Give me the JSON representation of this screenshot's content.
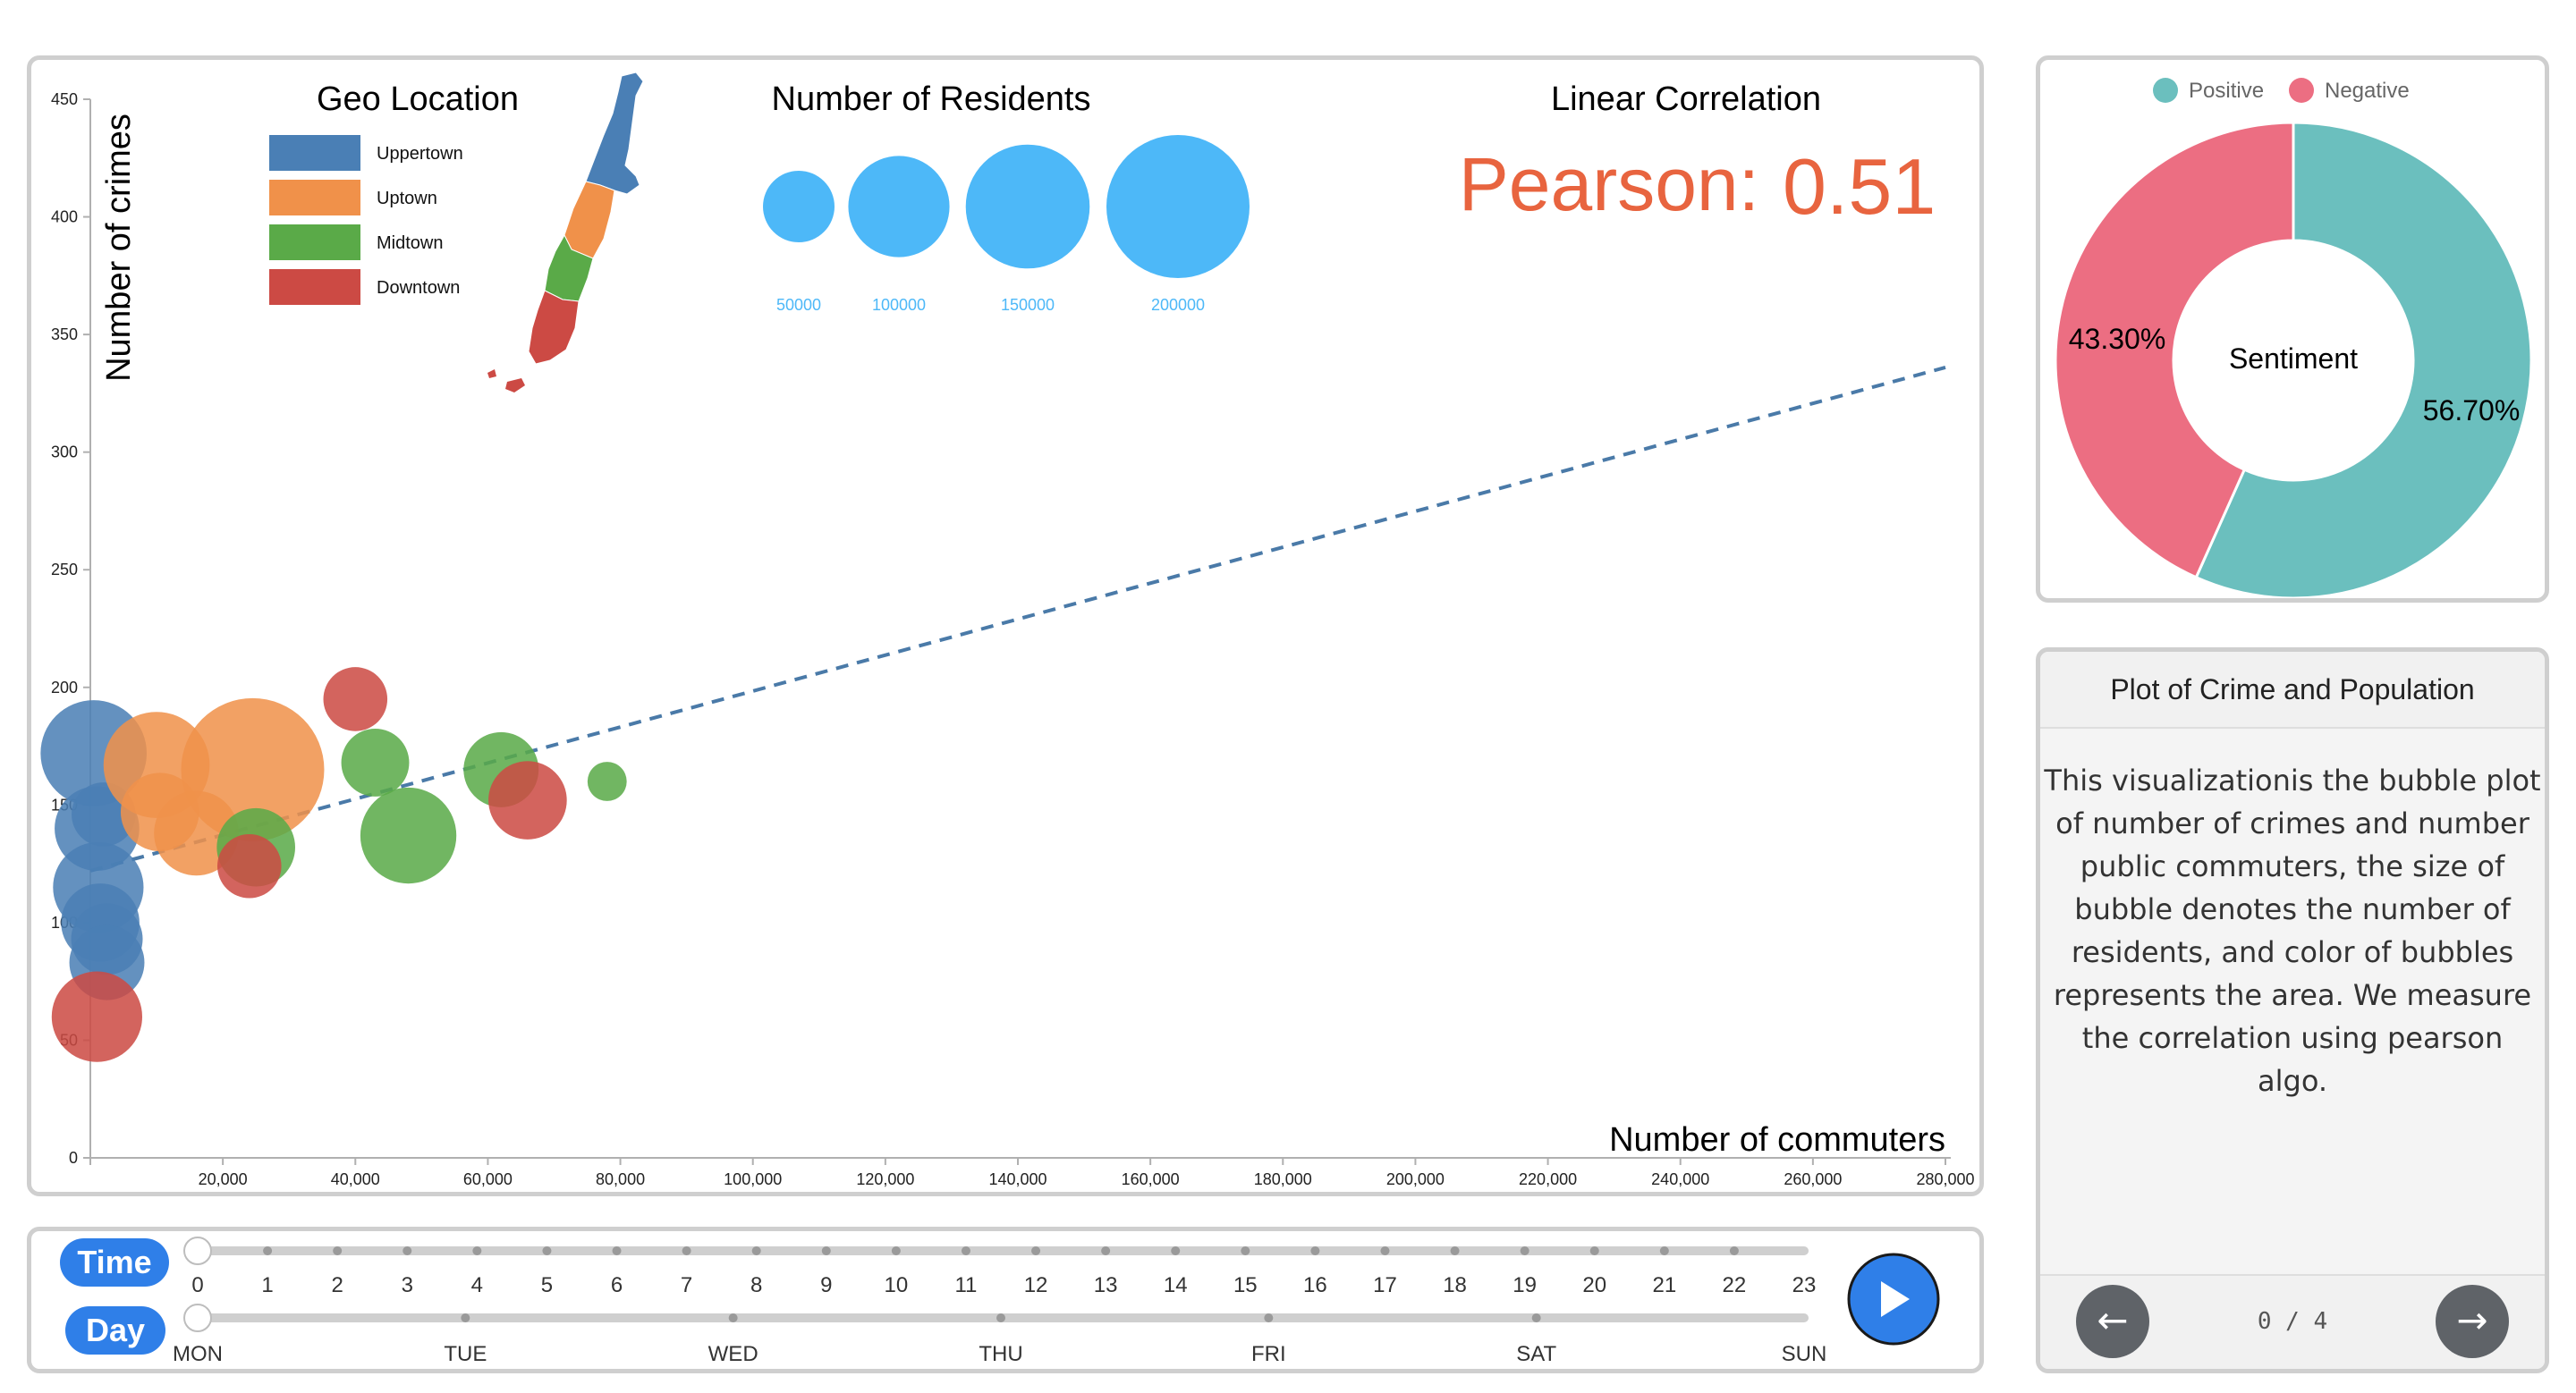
{
  "chart_data": {
    "type": "scatter",
    "xlabel": "Number of commuters",
    "ylabel": "Number of crimes",
    "xlim": [
      0,
      280000
    ],
    "ylim": [
      0,
      450
    ],
    "x_ticks": [
      20000,
      40000,
      60000,
      80000,
      100000,
      120000,
      140000,
      160000,
      180000,
      200000,
      220000,
      240000,
      260000,
      280000
    ],
    "x_tick_labels": [
      "20,000",
      "40,000",
      "60,000",
      "80,000",
      "100,000",
      "120,000",
      "140,000",
      "160,000",
      "180,000",
      "200,000",
      "220,000",
      "240,000",
      "260,000",
      "280,000"
    ],
    "y_ticks": [
      0,
      50,
      100,
      150,
      200,
      250,
      300,
      350,
      400,
      450
    ],
    "y_tick_labels": [
      "0",
      "50",
      "100",
      "150",
      "200",
      "250",
      "300",
      "350",
      "400",
      "450"
    ],
    "trend_line": {
      "x": [
        0,
        280000
      ],
      "y": [
        122,
        336
      ],
      "style": "dashed",
      "color": "#4a7aa8"
    },
    "series": [
      {
        "name": "Uppertown",
        "color": "#4a7fb5",
        "points": [
          {
            "x": 500,
            "y": 172,
            "residents": 110000
          },
          {
            "x": 1000,
            "y": 140,
            "residents": 70000
          },
          {
            "x": 1200,
            "y": 115,
            "residents": 80000
          },
          {
            "x": 1500,
            "y": 100,
            "residents": 60000
          },
          {
            "x": 2500,
            "y": 93,
            "residents": 50000
          },
          {
            "x": 2500,
            "y": 83,
            "residents": 55000
          },
          {
            "x": 2000,
            "y": 146,
            "residents": 40000
          }
        ]
      },
      {
        "name": "Uptown",
        "color": "#f0914a",
        "points": [
          {
            "x": 10000,
            "y": 167,
            "residents": 110000
          },
          {
            "x": 24500,
            "y": 165,
            "residents": 200000
          },
          {
            "x": 10500,
            "y": 147,
            "residents": 60000
          },
          {
            "x": 16000,
            "y": 138,
            "residents": 70000
          }
        ]
      },
      {
        "name": "Midtown",
        "color": "#5aaa48",
        "points": [
          {
            "x": 25000,
            "y": 132,
            "residents": 60000
          },
          {
            "x": 43000,
            "y": 168,
            "residents": 45000
          },
          {
            "x": 48000,
            "y": 137,
            "residents": 90000
          },
          {
            "x": 62000,
            "y": 165,
            "residents": 55000
          },
          {
            "x": 78000,
            "y": 160,
            "residents": 15000
          }
        ]
      },
      {
        "name": "Downtown",
        "color": "#cc4a44",
        "points": [
          {
            "x": 40000,
            "y": 195,
            "residents": 40000
          },
          {
            "x": 66000,
            "y": 152,
            "residents": 60000
          },
          {
            "x": 24000,
            "y": 124,
            "residents": 40000
          },
          {
            "x": 1000,
            "y": 60,
            "residents": 80000
          }
        ]
      }
    ]
  },
  "legend": {
    "title": "Geo Location",
    "items": [
      {
        "label": "Uppertown",
        "color": "#4a7fb5"
      },
      {
        "label": "Uptown",
        "color": "#f0914a"
      },
      {
        "label": "Midtown",
        "color": "#5aaa48"
      },
      {
        "label": "Downtown",
        "color": "#cc4a44"
      }
    ]
  },
  "size_legend": {
    "title": "Number of Residents",
    "color": "#4db8f8",
    "items": [
      {
        "label": "50000",
        "value": 50000
      },
      {
        "label": "100000",
        "value": 100000
      },
      {
        "label": "150000",
        "value": 150000
      },
      {
        "label": "200000",
        "value": 200000
      }
    ]
  },
  "correlation": {
    "title": "Linear Correlation",
    "label": "Pearson:",
    "value": "0.51",
    "color": "#e8643f"
  },
  "sentiment": {
    "center_label": "Sentiment",
    "legend": [
      {
        "label": "Positive",
        "color": "#6bbfbe"
      },
      {
        "label": "Negative",
        "color": "#ec6e82"
      }
    ],
    "slices": [
      {
        "name": "Positive",
        "value": 56.7,
        "label": "56.70%",
        "color": "#6bbfbe"
      },
      {
        "name": "Negative",
        "value": 43.3,
        "label": "43.30%",
        "color": "#ec6e82"
      }
    ]
  },
  "info": {
    "title": "Plot of Crime and Population",
    "body": "This visualizationis the bubble plot of number of crimes and number public commuters, the size of bubble denotes the number of residents, and color of bubbles represents the area. We measure the correlation using pearson algo.",
    "page": "0 / 4",
    "prev_icon": "arrow-left-icon",
    "next_icon": "arrow-right-icon"
  },
  "sliders": {
    "time": {
      "label": "Time",
      "value": 0,
      "ticks": [
        "0",
        "1",
        "2",
        "3",
        "4",
        "5",
        "6",
        "7",
        "8",
        "9",
        "10",
        "11",
        "12",
        "13",
        "14",
        "15",
        "16",
        "17",
        "18",
        "19",
        "20",
        "21",
        "22",
        "23"
      ]
    },
    "day": {
      "label": "Day",
      "value": "MON",
      "ticks": [
        "MON",
        "TUE",
        "WED",
        "THU",
        "FRI",
        "SAT",
        "SUN"
      ]
    },
    "play_icon": "play-icon",
    "accent": "#2f7fe8"
  }
}
